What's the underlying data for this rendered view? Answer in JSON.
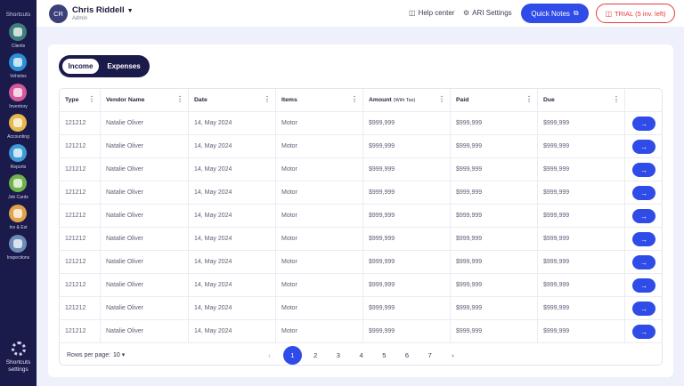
{
  "sidebar": {
    "heading": "Shortcuts",
    "items": [
      {
        "label": "Clients",
        "color": "#3d7f7a"
      },
      {
        "label": "Vehicles",
        "color": "#2a8fd6"
      },
      {
        "label": "Inventory",
        "color": "#d6589b"
      },
      {
        "label": "Accounting",
        "color": "#e6b84a"
      },
      {
        "label": "Reports",
        "color": "#3c9ad6"
      },
      {
        "label": "Job Cards",
        "color": "#6fb24a"
      },
      {
        "label": "Inv & Est",
        "color": "#e0a24a"
      },
      {
        "label": "Inspections",
        "color": "#6c8bb8"
      }
    ],
    "settings_line1": "Shortcuts",
    "settings_line2": "settings"
  },
  "header": {
    "avatar_initials": "CR",
    "user_name": "Chris Riddell",
    "user_role": "Admin",
    "help_label": "Help center",
    "ari_label": "ARI Settings",
    "quick_notes_label": "Quick Notes",
    "trial_label": "TRIAL (5 inv. left)"
  },
  "toggle": {
    "income": "Income",
    "expenses": "Expenses"
  },
  "table": {
    "columns": [
      "Type",
      "Vendor Name",
      "Date",
      "Items",
      "Amount",
      "Paid",
      "Due"
    ],
    "amount_suffix": "(With Tax)",
    "rows": [
      [
        "121212",
        "Natalie Oliver",
        "14, May 2024",
        "Motor",
        "$999,999",
        "$999,999",
        "$999,999"
      ],
      [
        "121212",
        "Natalie Oliver",
        "14, May 2024",
        "Motor",
        "$999,999",
        "$999,999",
        "$999,999"
      ],
      [
        "121212",
        "Natalie Oliver",
        "14, May 2024",
        "Motor",
        "$999,999",
        "$999,999",
        "$999,999"
      ],
      [
        "121212",
        "Natalie Oliver",
        "14, May 2024",
        "Motor",
        "$999,999",
        "$999,999",
        "$999,999"
      ],
      [
        "121212",
        "Natalie Oliver",
        "14, May 2024",
        "Motor",
        "$999,999",
        "$999,999",
        "$999,999"
      ],
      [
        "121212",
        "Natalie Oliver",
        "14, May 2024",
        "Motor",
        "$999,999",
        "$999,999",
        "$999,999"
      ],
      [
        "121212",
        "Natalie Oliver",
        "14, May 2024",
        "Motor",
        "$999,999",
        "$999,999",
        "$999,999"
      ],
      [
        "121212",
        "Natalie Oliver",
        "14, May 2024",
        "Motor",
        "$999,999",
        "$999,999",
        "$999,999"
      ],
      [
        "121212",
        "Natalie Oliver",
        "14, May 2024",
        "Motor",
        "$999,999",
        "$999,999",
        "$999,999"
      ],
      [
        "121212",
        "Natalie Oliver",
        "14, May 2024",
        "Motor",
        "$999,999",
        "$999,999",
        "$999,999"
      ]
    ]
  },
  "pagination": {
    "rows_per_page_label": "Rows per page:",
    "rows_per_page_value": "10",
    "pages": [
      "1",
      "2",
      "3",
      "4",
      "5",
      "6",
      "7"
    ],
    "current_page": "1"
  },
  "colors": {
    "accent": "#2f4be8",
    "sidebar": "#1a1a4b",
    "trial": "#e43a3a"
  }
}
